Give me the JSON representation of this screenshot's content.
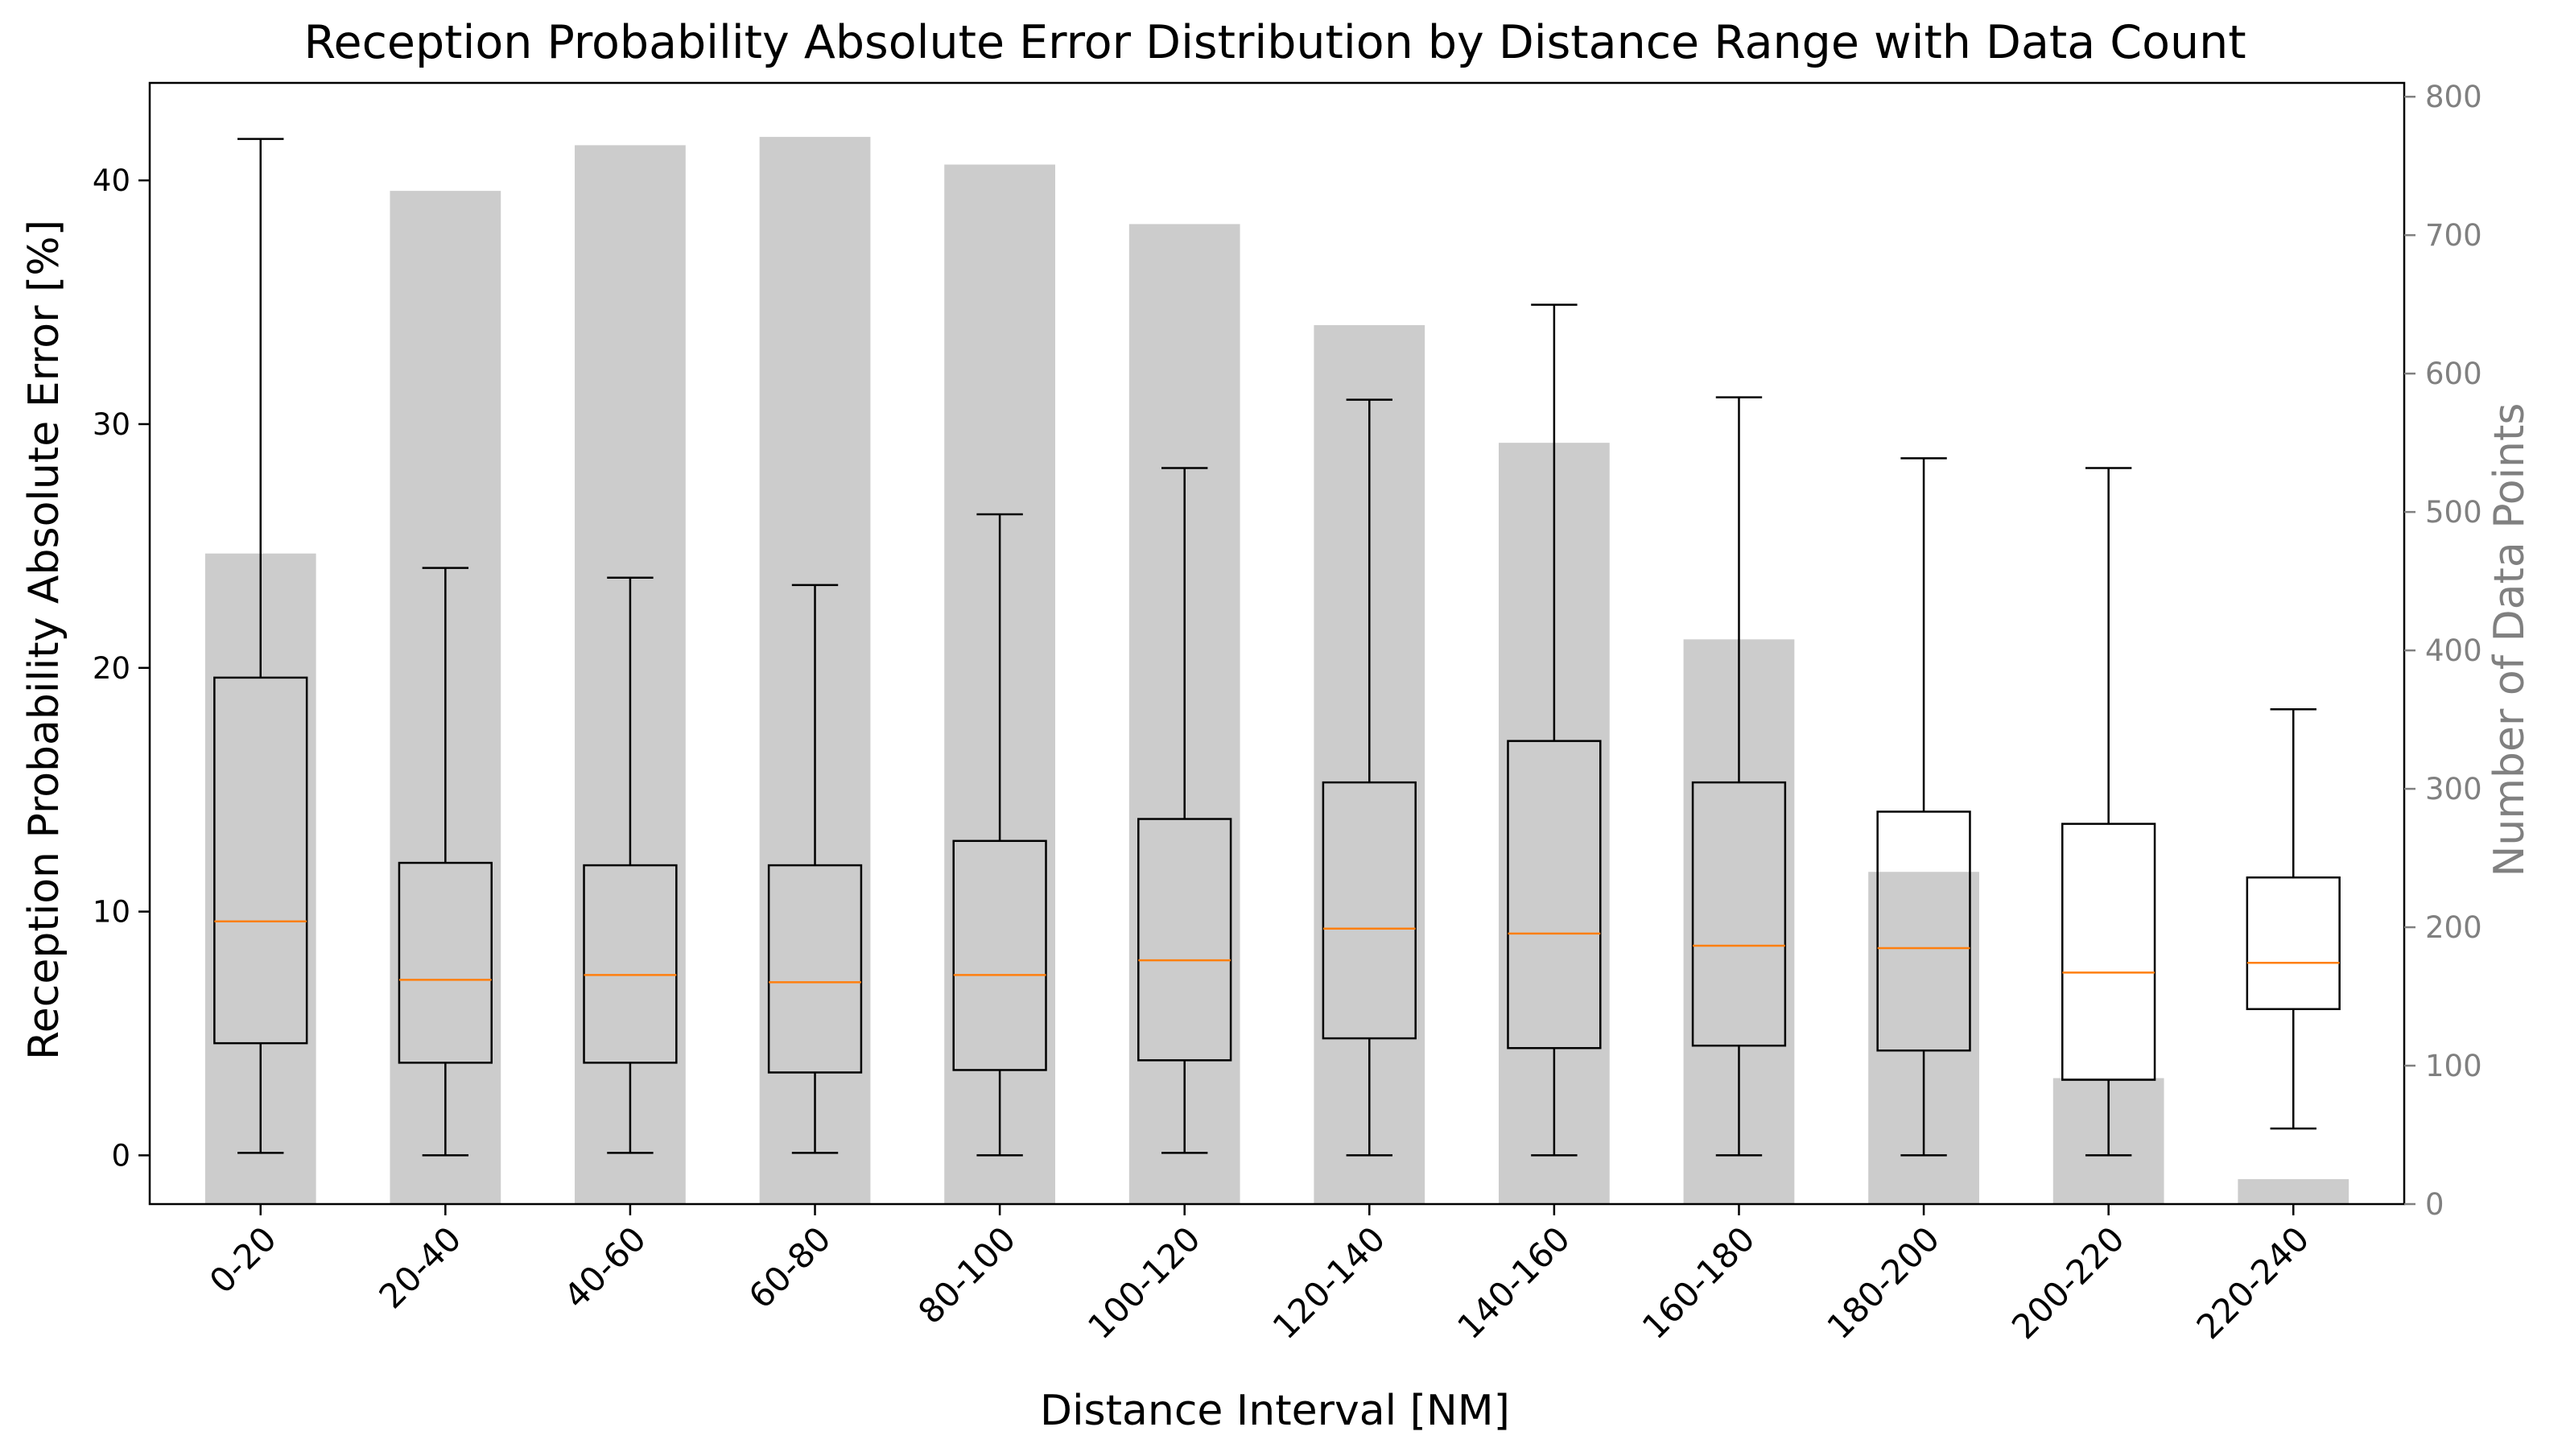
{
  "chart_data": {
    "type": "box",
    "title": "Reception Probability Absolute Error Distribution by Distance Range with Data Count",
    "xlabel": "Distance Interval [NM]",
    "ylabel": "Reception Probability Absolute Error [%]",
    "y2label": "Number of Data Points",
    "ylim": [
      -2,
      44
    ],
    "y2lim": [
      0,
      810
    ],
    "yticks": [
      0,
      10,
      20,
      30,
      40
    ],
    "y2ticks": [
      0,
      100,
      200,
      300,
      400,
      500,
      600,
      700,
      800
    ],
    "categories": [
      "0-20",
      "20-40",
      "40-60",
      "60-80",
      "80-100",
      "100-120",
      "120-140",
      "140-160",
      "160-180",
      "180-200",
      "200-220",
      "220-240"
    ],
    "boxes": [
      {
        "whislo": 0.1,
        "q1": 4.6,
        "med": 9.6,
        "q3": 19.6,
        "whishi": 41.7
      },
      {
        "whislo": 0.0,
        "q1": 3.8,
        "med": 7.2,
        "q3": 12.0,
        "whishi": 24.1
      },
      {
        "whislo": 0.1,
        "q1": 3.8,
        "med": 7.4,
        "q3": 11.9,
        "whishi": 23.7
      },
      {
        "whislo": 0.1,
        "q1": 3.4,
        "med": 7.1,
        "q3": 11.9,
        "whishi": 23.4
      },
      {
        "whislo": 0.0,
        "q1": 3.5,
        "med": 7.4,
        "q3": 12.9,
        "whishi": 26.3
      },
      {
        "whislo": 0.1,
        "q1": 3.9,
        "med": 8.0,
        "q3": 13.8,
        "whishi": 28.2
      },
      {
        "whislo": 0.0,
        "q1": 4.8,
        "med": 9.3,
        "q3": 15.3,
        "whishi": 31.0
      },
      {
        "whislo": 0.0,
        "q1": 4.4,
        "med": 9.1,
        "q3": 17.0,
        "whishi": 34.9
      },
      {
        "whislo": 0.0,
        "q1": 4.5,
        "med": 8.6,
        "q3": 15.3,
        "whishi": 31.1
      },
      {
        "whislo": 0.0,
        "q1": 4.3,
        "med": 8.5,
        "q3": 14.1,
        "whishi": 28.6
      },
      {
        "whislo": 0.0,
        "q1": 3.1,
        "med": 7.5,
        "q3": 13.6,
        "whishi": 28.2
      },
      {
        "whislo": 1.1,
        "q1": 6.0,
        "med": 7.9,
        "q3": 11.4,
        "whishi": 18.3
      }
    ],
    "counts": [
      470,
      732,
      765,
      771,
      751,
      708,
      635,
      550,
      408,
      240,
      91,
      18
    ],
    "colors": {
      "bar": "#cccccc",
      "box": "#000000",
      "median": "#ff7f0e",
      "right_axis": "#808080"
    },
    "grid": false,
    "legend": "none"
  }
}
